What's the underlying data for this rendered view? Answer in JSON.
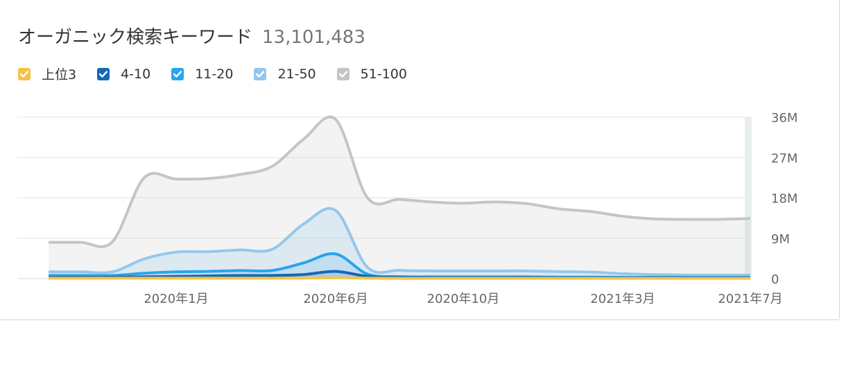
{
  "header": {
    "title": "オーガニック検索キーワード",
    "total": "13,101,483"
  },
  "legend": [
    {
      "label": "上位3",
      "color": "#f6c344",
      "icon": "check-icon"
    },
    {
      "label": "4-10",
      "color": "#1667b7",
      "icon": "check-icon"
    },
    {
      "label": "11-20",
      "color": "#2aa4ef",
      "icon": "check-icon"
    },
    {
      "label": "21-50",
      "color": "#93c8ee",
      "icon": "check-icon"
    },
    {
      "label": "51-100",
      "color": "#c5c5c5",
      "icon": "check-icon"
    }
  ],
  "chart_data": {
    "type": "area",
    "title": "オーガニック検索キーワード",
    "ylim": [
      0,
      36
    ],
    "yunit": "M",
    "yticks": [
      "0",
      "9M",
      "18M",
      "27M",
      "36M"
    ],
    "xticks": [
      "2020年1月",
      "2020年6月",
      "2020年10月",
      "2021年3月",
      "2021年7月"
    ],
    "grid": true,
    "stacked": true,
    "x": [
      "2019-09",
      "2019-10",
      "2019-11",
      "2019-12",
      "2020-01",
      "2020-02",
      "2020-03",
      "2020-04",
      "2020-05",
      "2020-06",
      "2020-07",
      "2020-08",
      "2020-09",
      "2020-10",
      "2020-11",
      "2020-12",
      "2021-01",
      "2021-02",
      "2021-03",
      "2021-04",
      "2021-05",
      "2021-06",
      "2021-07"
    ],
    "series": [
      {
        "name": "上位3",
        "color": "#f6c344",
        "values": [
          0.1,
          0.1,
          0.1,
          0.1,
          0.1,
          0.1,
          0.1,
          0.1,
          0.1,
          0.2,
          0.1,
          0.05,
          0.05,
          0.05,
          0.05,
          0.05,
          0.05,
          0.05,
          0.05,
          0.05,
          0.05,
          0.05,
          0.05
        ]
      },
      {
        "name": "4-10",
        "color": "#1667b7",
        "values": [
          0.2,
          0.2,
          0.2,
          0.3,
          0.4,
          0.5,
          0.6,
          0.6,
          0.8,
          1.4,
          0.4,
          0.2,
          0.15,
          0.15,
          0.15,
          0.15,
          0.1,
          0.1,
          0.1,
          0.1,
          0.1,
          0.1,
          0.1
        ]
      },
      {
        "name": "11-20",
        "color": "#2aa4ef",
        "values": [
          0.4,
          0.4,
          0.4,
          0.8,
          1.0,
          1.0,
          1.1,
          1.1,
          2.6,
          3.9,
          0.5,
          0.2,
          0.2,
          0.2,
          0.2,
          0.2,
          0.2,
          0.2,
          0.15,
          0.15,
          0.15,
          0.15,
          0.15
        ]
      },
      {
        "name": "21-50",
        "color": "#93c8ee",
        "values": [
          0.8,
          0.8,
          0.8,
          3.2,
          4.4,
          4.4,
          4.6,
          4.7,
          8.7,
          9.7,
          1.5,
          1.4,
          1.3,
          1.3,
          1.3,
          1.3,
          1.2,
          1.1,
          0.8,
          0.6,
          0.5,
          0.5,
          0.5
        ]
      },
      {
        "name": "51-100",
        "color": "#c5c5c5",
        "values": [
          6.6,
          6.6,
          6.7,
          18.1,
          16.3,
          16.3,
          16.8,
          18.5,
          18.9,
          20.3,
          15.5,
          15.8,
          15.4,
          15.1,
          15.4,
          15.0,
          14.0,
          13.5,
          12.8,
          12.4,
          12.4,
          12.4,
          12.6
        ]
      }
    ]
  }
}
